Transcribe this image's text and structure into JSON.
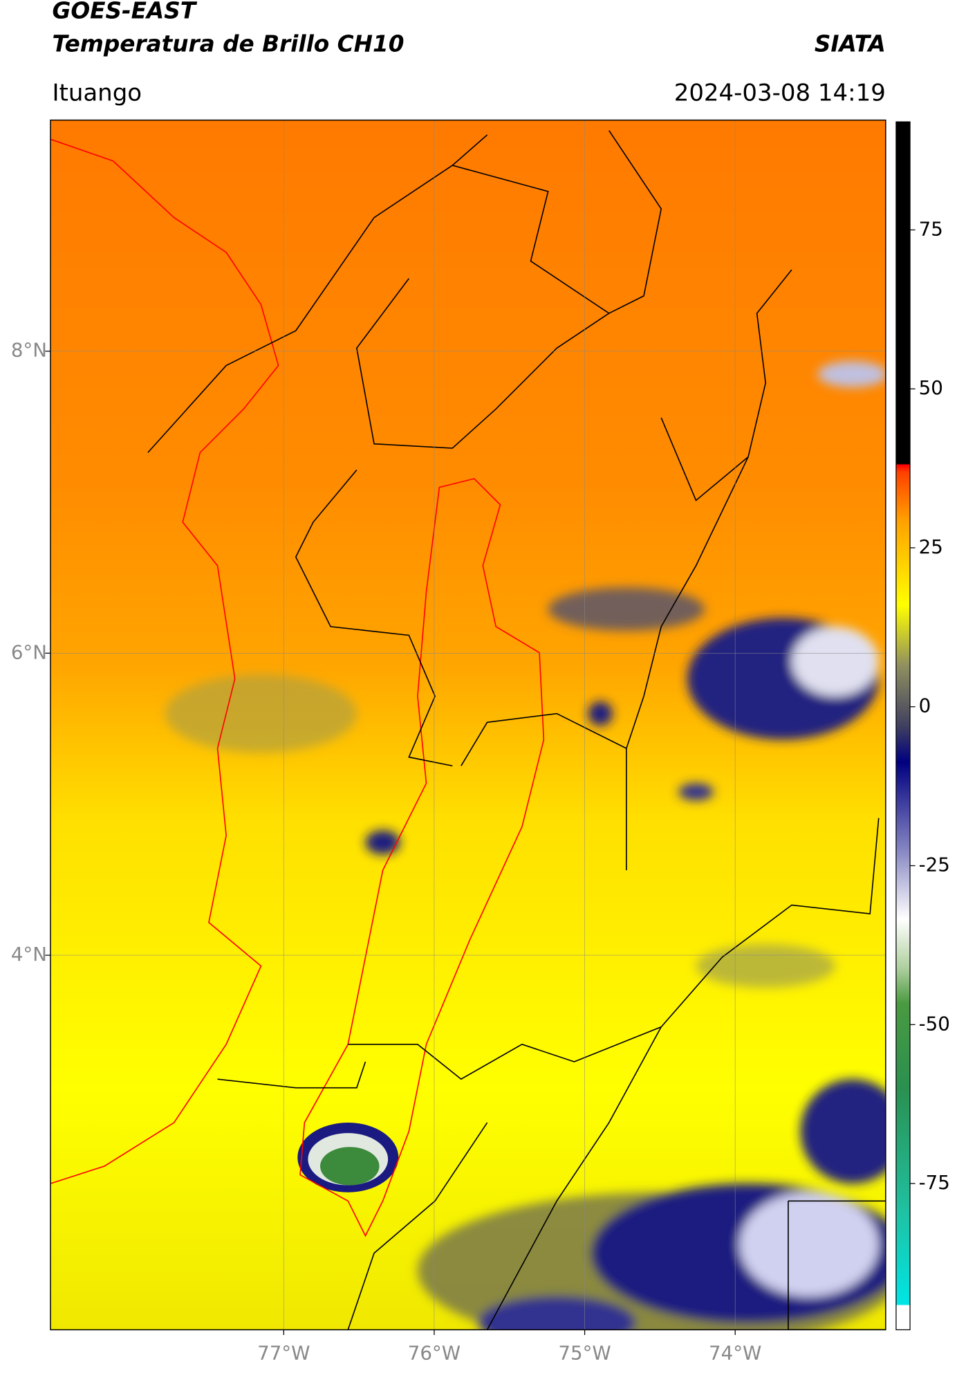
{
  "header": {
    "title": "GOES-EAST",
    "subtitle": "Temperatura de Brillo CH10",
    "source": "SIATA",
    "location": "Ituango",
    "datetime": "2024-03-08 14:19"
  },
  "map": {
    "xlim": [
      -78.55,
      -73.0
    ],
    "ylim": [
      1.52,
      9.53
    ],
    "xticks": [
      {
        "value": -77,
        "label": "77°W"
      },
      {
        "value": -76,
        "label": "76°W"
      },
      {
        "value": -75,
        "label": "75°W"
      },
      {
        "value": -74,
        "label": "74°W"
      }
    ],
    "yticks": [
      {
        "value": 8,
        "label": "8°N"
      },
      {
        "value": 6,
        "label": "6°N"
      },
      {
        "value": 4,
        "label": "4°N"
      }
    ],
    "grid": true
  },
  "colorbar": {
    "lim": [
      -98,
      92
    ],
    "ticks": [
      75,
      50,
      25,
      0,
      -25,
      -50,
      -75
    ]
  }
}
